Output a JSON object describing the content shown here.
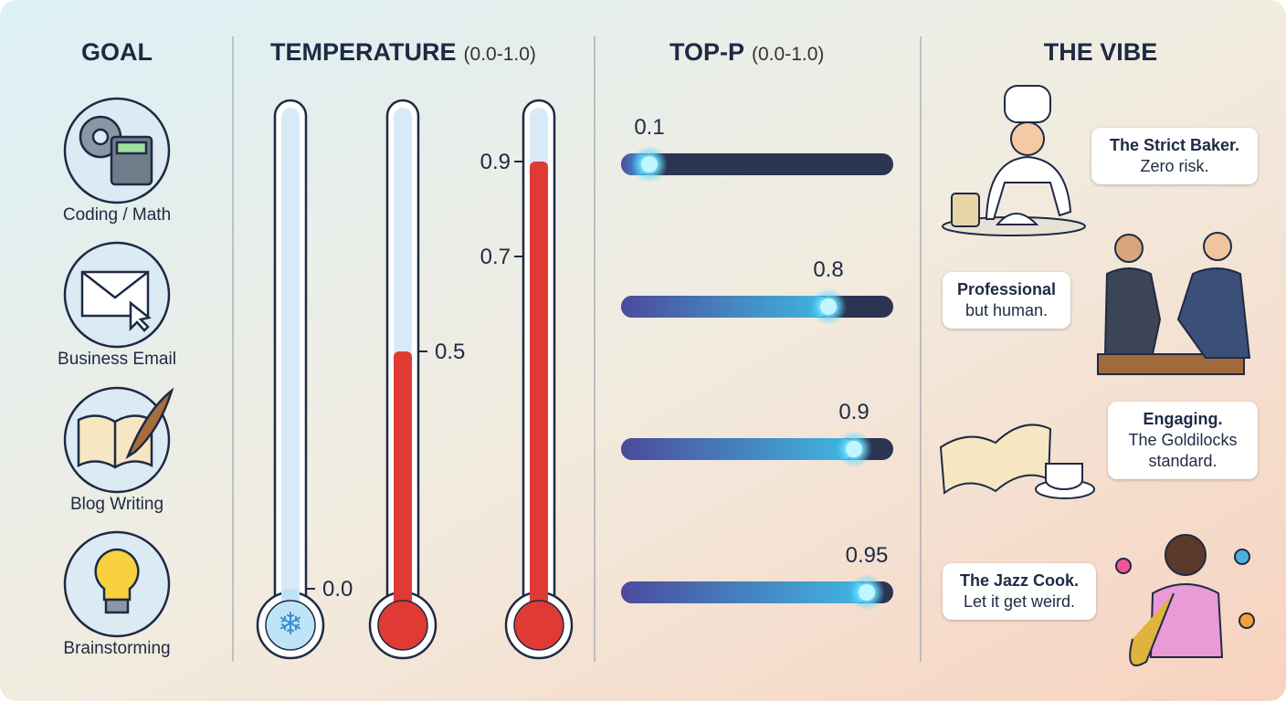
{
  "columns": {
    "goal": "GOAL",
    "temperature": "TEMPERATURE",
    "temperature_range": "(0.0-1.0)",
    "top_p": "TOP-P",
    "top_p_range": "(0.0-1.0)",
    "vibe": "THE VIBE"
  },
  "goals": [
    "Coding / Math",
    "Business Email",
    "Blog Writing",
    "Brainstorming"
  ],
  "thermometers": [
    {
      "ticks": [
        {
          "value": 0,
          "label": "0.0"
        }
      ]
    },
    {
      "ticks": [
        0.5
      ]
    },
    {
      "ticks": [
        0.7,
        0.9
      ]
    }
  ],
  "top_p": [
    0.1,
    0.8,
    0.9,
    0.95
  ],
  "vibes": [
    {
      "title": "The Strict Baker.",
      "text": "Zero risk."
    },
    {
      "title": "Professional",
      "text": "but human."
    },
    {
      "title": "Engaging.",
      "text": "The Goldilocks standard."
    },
    {
      "title": "The Jazz Cook.",
      "text": "Let it get weird."
    }
  ]
}
